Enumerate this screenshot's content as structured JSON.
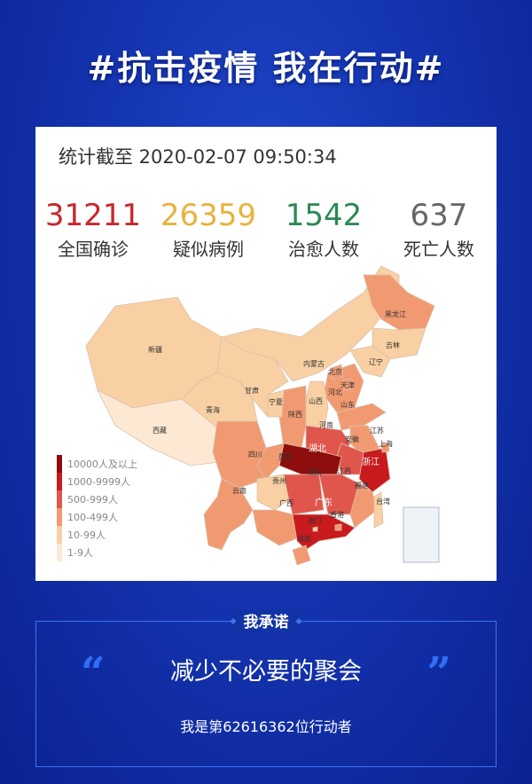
{
  "header": {
    "title": "#抗击疫情 我在行动#"
  },
  "card": {
    "timestamp": "统计截至 2020-02-07 09:50:34",
    "stats": [
      {
        "value": "31211",
        "label": "全国确诊",
        "color": "#c8272d"
      },
      {
        "value": "26359",
        "label": "疑似病例",
        "color": "#e9b23a"
      },
      {
        "value": "1542",
        "label": "治愈人数",
        "color": "#2a8a55"
      },
      {
        "value": "637",
        "label": "死亡人数",
        "color": "#666666"
      }
    ],
    "legend": [
      {
        "label": "10000人及以上",
        "color": "#8e0d0d"
      },
      {
        "label": "1000-9999人",
        "color": "#c91a1e"
      },
      {
        "label": "500-999人",
        "color": "#e0564c"
      },
      {
        "label": "100-499人",
        "color": "#f19a71"
      },
      {
        "label": "10-99人",
        "color": "#f8d0a3"
      },
      {
        "label": "1-9人",
        "color": "#fde9d3"
      }
    ],
    "provinces": [
      {
        "name": "新疆",
        "level": 4
      },
      {
        "name": "西藏",
        "level": 5
      },
      {
        "name": "青海",
        "level": 4
      },
      {
        "name": "甘肃",
        "level": 4
      },
      {
        "name": "内蒙古",
        "level": 4
      },
      {
        "name": "黑龙江",
        "level": 3
      },
      {
        "name": "吉林",
        "level": 4
      },
      {
        "name": "辽宁",
        "level": 4
      },
      {
        "name": "河北",
        "level": 3
      },
      {
        "name": "山西",
        "level": 4
      },
      {
        "name": "陕西",
        "level": 3
      },
      {
        "name": "宁夏",
        "level": 4
      },
      {
        "name": "山东",
        "level": 3
      },
      {
        "name": "河南",
        "level": 2
      },
      {
        "name": "江苏",
        "level": 3
      },
      {
        "name": "安徽",
        "level": 2
      },
      {
        "name": "湖北",
        "level": 0
      },
      {
        "name": "浙江",
        "level": 1
      },
      {
        "name": "重庆",
        "level": 3
      },
      {
        "name": "四川",
        "level": 3
      },
      {
        "name": "云南",
        "level": 3
      },
      {
        "name": "贵州",
        "level": 4
      },
      {
        "name": "湖南",
        "level": 2
      },
      {
        "name": "江西",
        "level": 2
      },
      {
        "name": "福建",
        "level": 3
      },
      {
        "name": "广西",
        "level": 3
      },
      {
        "name": "广东",
        "level": 1
      },
      {
        "name": "海南",
        "level": 3
      },
      {
        "name": "台湾",
        "level": 4
      },
      {
        "name": "北京",
        "level": 3
      },
      {
        "name": "天津",
        "level": 3
      },
      {
        "name": "上海",
        "level": 3
      },
      {
        "name": "香港",
        "level": 3
      },
      {
        "name": "澳门",
        "level": 4
      }
    ]
  },
  "pledge": {
    "title": "我承诺",
    "open_quote": "“",
    "close_quote": "”",
    "text": "减少不必要的聚会",
    "count_text": "我是第62616362位行动者"
  }
}
